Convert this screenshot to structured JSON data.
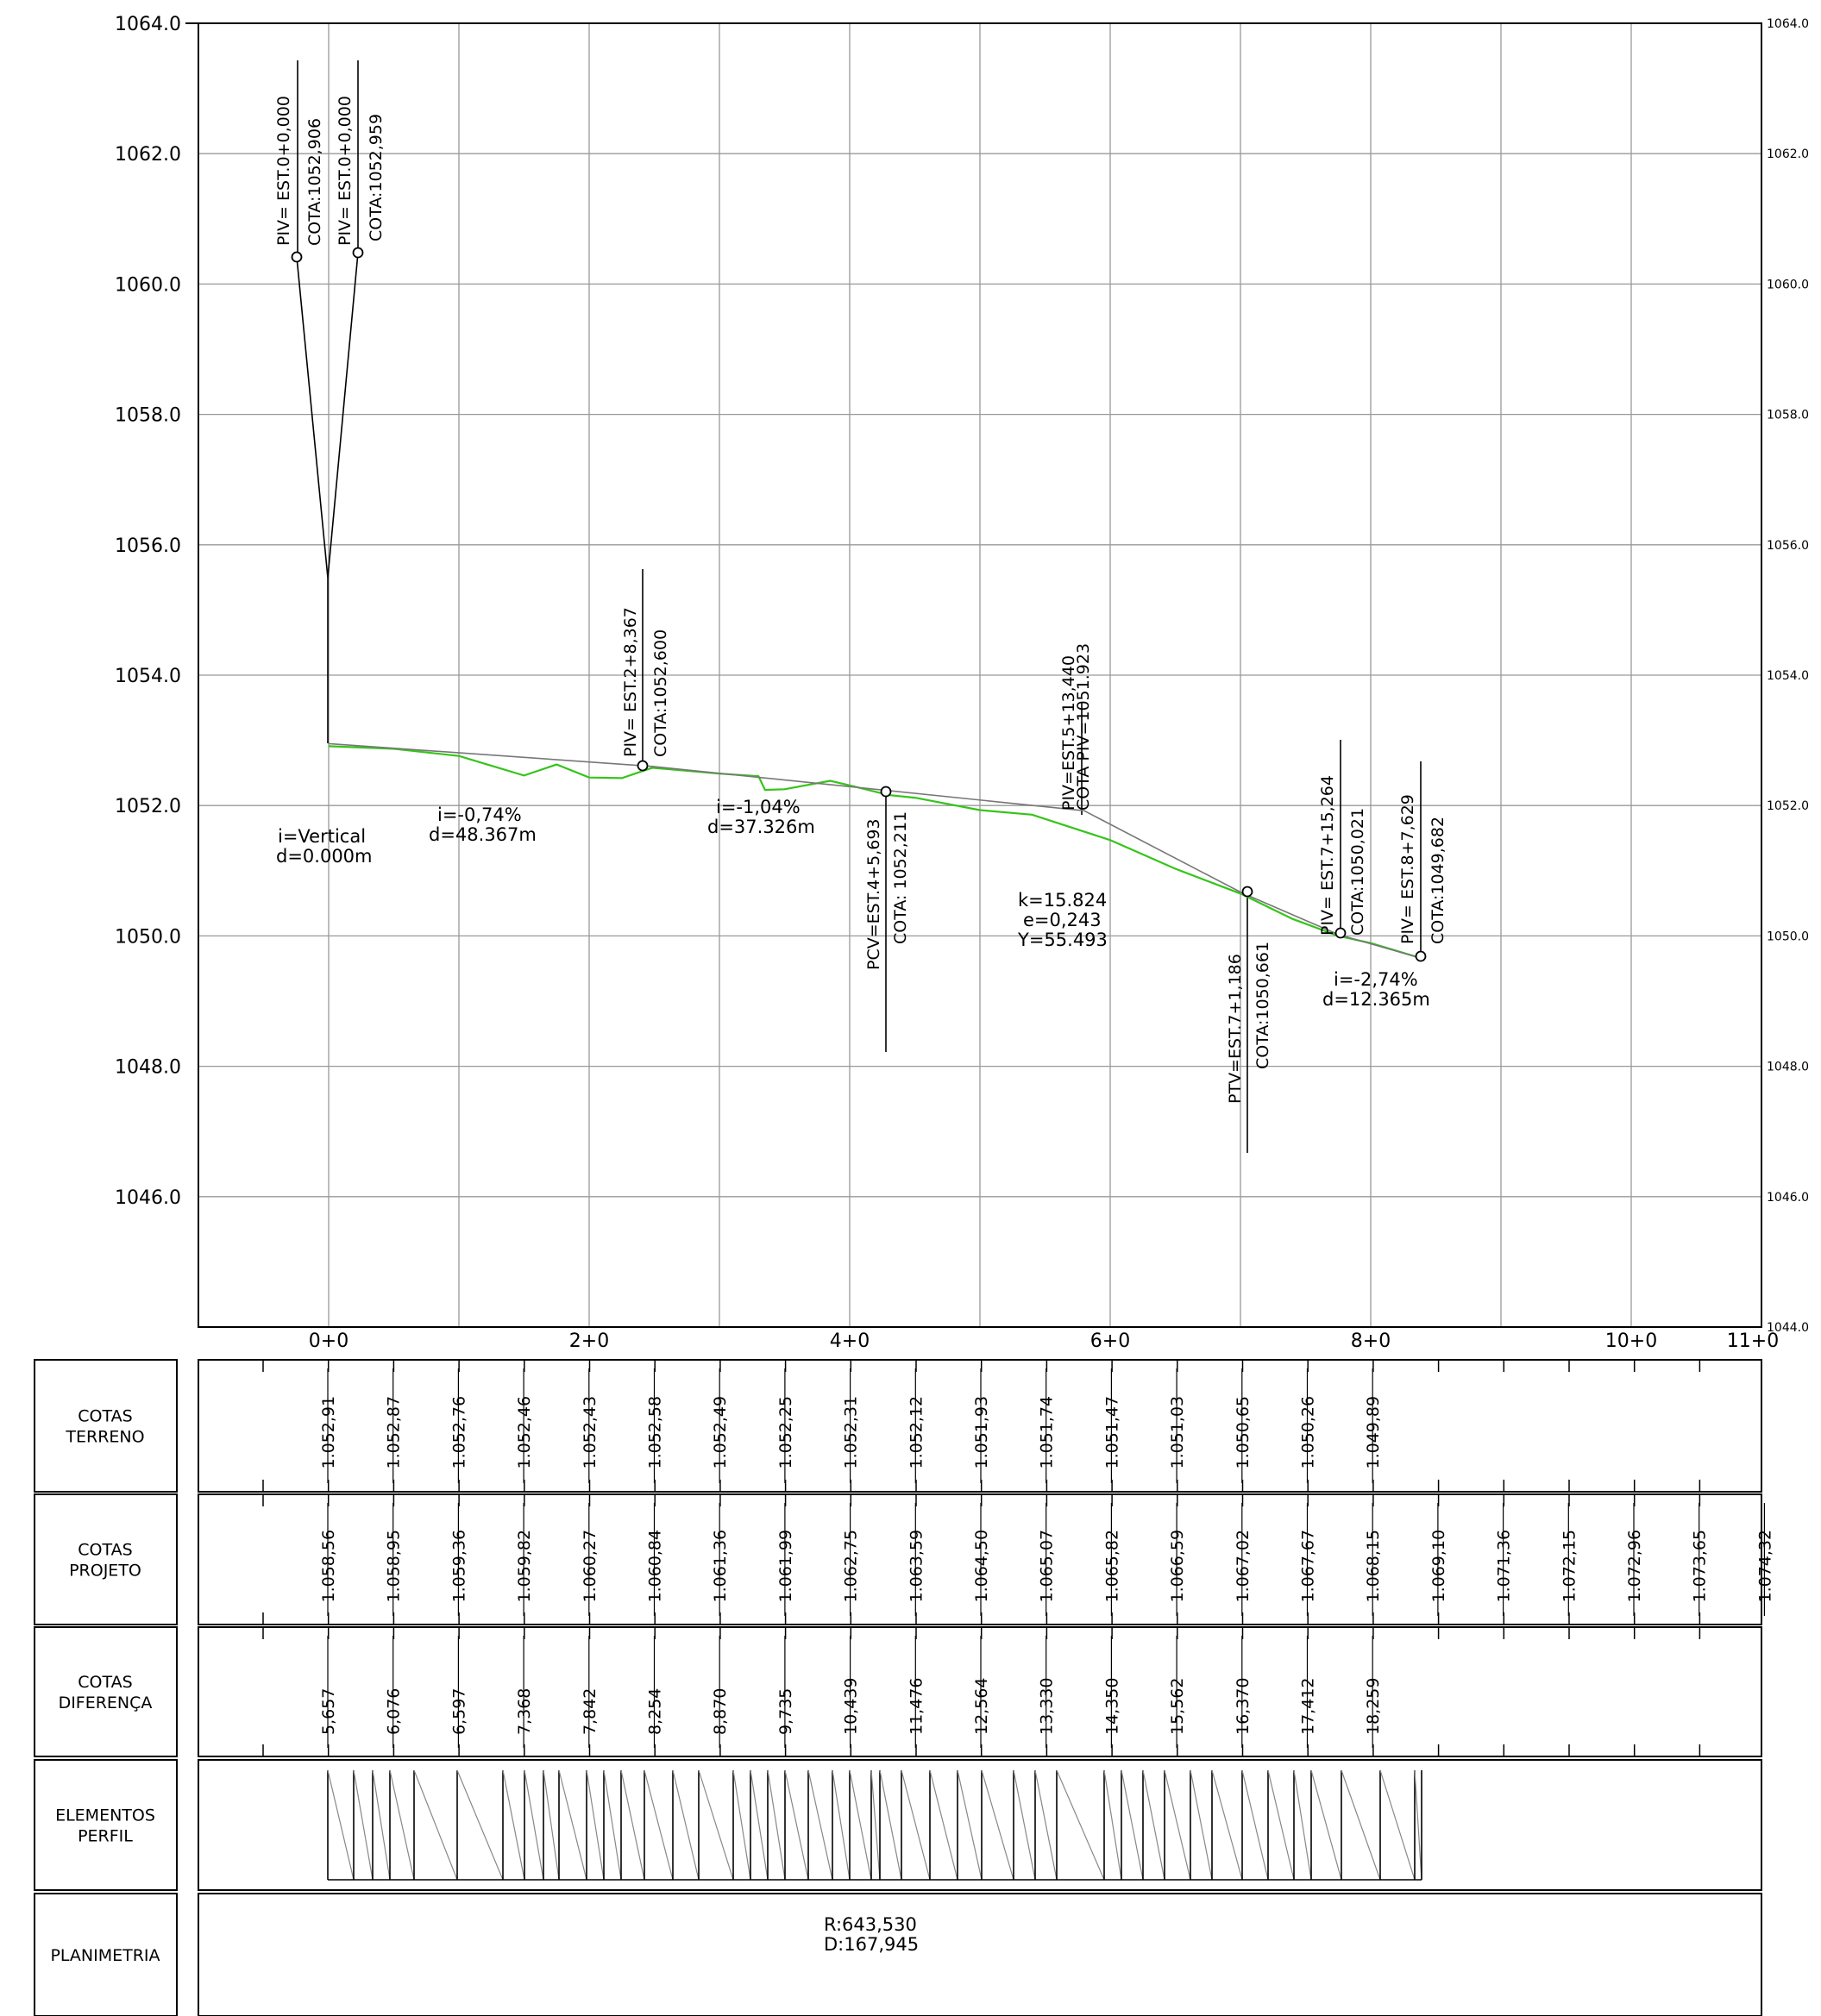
{
  "y_axis": {
    "ticks": [
      "1064.0",
      "1062.0",
      "1060.0",
      "1058.0",
      "1056.0",
      "1054.0",
      "1052.0",
      "1050.0",
      "1048.0",
      "1046.0"
    ],
    "right_ticks": [
      "1064.0",
      "1062.0",
      "1060.0",
      "1058.0",
      "1056.0",
      "1054.0",
      "1052.0",
      "1050.0",
      "1048.0",
      "1046.0",
      "1044.0"
    ]
  },
  "x_axis": {
    "ticks": [
      "0+0",
      "2+0",
      "4+0",
      "6+0",
      "8+0",
      "10+0",
      "11+0"
    ]
  },
  "chart_data": {
    "type": "line",
    "ylim": [
      1044,
      1064
    ],
    "xlim": [
      -100,
      1100
    ],
    "series": [
      {
        "x": [
          0,
          50,
          100,
          150,
          175,
          200,
          225,
          248.4,
          300,
          330,
          335,
          350,
          385,
          400,
          430,
          450,
          500,
          540,
          600,
          650,
          700,
          740,
          775,
          800,
          835
        ],
        "y": [
          1052.91,
          1052.87,
          1052.76,
          1052.46,
          1052.63,
          1052.43,
          1052.42,
          1052.58,
          1052.49,
          1052.45,
          1052.24,
          1052.25,
          1052.38,
          1052.31,
          1052.16,
          1052.12,
          1051.93,
          1051.86,
          1051.47,
          1051.03,
          1050.65,
          1050.26,
          1050.0,
          1049.89,
          1049.68
        ]
      },
      {
        "x": [
          0,
          248.4,
          580,
          701.2,
          775.3,
          835
        ],
        "y": [
          1052.95,
          1052.6,
          1051.92,
          1050.66,
          1050.02,
          1049.68
        ]
      }
    ]
  },
  "piv_labels": [
    {
      "l1": "PIV=  EST.0+0,000",
      "l2": "COTA:1052,906"
    },
    {
      "l1": "PIV=  EST.0+0,000",
      "l2": "COTA:1052,959"
    },
    {
      "l1": "PIV=  EST.2+8,367",
      "l2": "COTA:1052,600"
    },
    {
      "l1": "PCV=EST.4+5,693",
      "l2": "COTA:  1052,211"
    },
    {
      "l1": "PIV=EST.5+13,440",
      "l2": "COTA  PIV=1051.923"
    },
    {
      "l1": "PTV=EST.7+1,186",
      "l2": "COTA:1050,661"
    },
    {
      "l1": "PIV=  EST.7+15,264",
      "l2": "COTA:1050,021"
    },
    {
      "l1": "PIV=  EST.8+7,629",
      "l2": "COTA:1049,682"
    }
  ],
  "segments": [
    {
      "i": "i=Vertical",
      "d": "d=0.000m"
    },
    {
      "i": "i=-0,74%",
      "d": "d=48.367m"
    },
    {
      "i": "i=-1,04%",
      "d": "d=37.326m"
    },
    {
      "i": "i=-2,74%",
      "d": "d=12.365m"
    }
  ],
  "curve": {
    "k": "k=15.824",
    "e": "e=0,243",
    "y": "Y=55.493"
  },
  "table": {
    "rows": [
      {
        "label": [
          "COTAS",
          "TERRENO"
        ],
        "values": [
          "1.052,91",
          "1.052,87",
          "1.052,76",
          "1.052,46",
          "1.052,43",
          "1.052,58",
          "1.052,49",
          "1.052,25",
          "1.052,31",
          "1.052,12",
          "1.051,93",
          "1.051,74",
          "1.051,47",
          "1.051,03",
          "1.050,65",
          "1.050,26",
          "1.049,89"
        ]
      },
      {
        "label": [
          "COTAS",
          "PROJETO"
        ],
        "values": [
          "1.058,56",
          "1.058,95",
          "1.059,36",
          "1.059,82",
          "1.060,27",
          "1.060,84",
          "1.061,36",
          "1.061,99",
          "1.062,75",
          "1.063,59",
          "1.064,50",
          "1.065,07",
          "1.065,82",
          "1.066,59",
          "1.067,02",
          "1.067,67",
          "1.068,15",
          "1.069,10",
          "1.071,36",
          "1.072,15",
          "1.072,96",
          "1.073,65",
          "1.074,32"
        ]
      },
      {
        "label": [
          "COTAS",
          "DIFERENÇA"
        ],
        "values": [
          "5,657",
          "6,076",
          "6,597",
          "7,368",
          "7,842",
          "8,254",
          "8,870",
          "9,735",
          "10,439",
          "11,476",
          "12,564",
          "13,330",
          "14,350",
          "15,562",
          "16,370",
          "17,412",
          "18,259"
        ]
      },
      {
        "label": [
          "ELEMENTOS",
          "PERFIL"
        ],
        "values": []
      },
      {
        "label": [
          "PLANIMETRIA"
        ],
        "values": []
      }
    ],
    "planimetria": {
      "r": "R:643,530",
      "d": "D:167,945"
    }
  }
}
